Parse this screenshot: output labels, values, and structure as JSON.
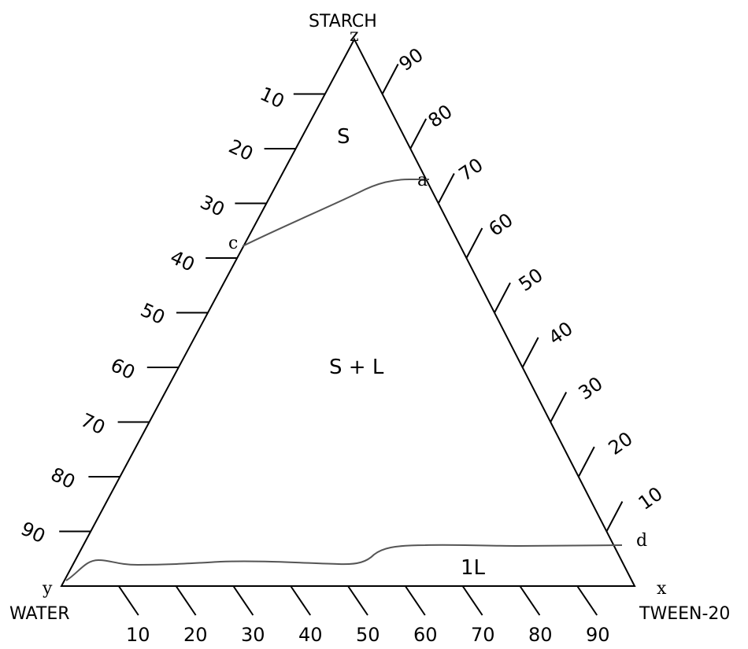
{
  "diagram": {
    "type": "ternary-phase-diagram",
    "components": {
      "top": "STARCH",
      "left": "WATER",
      "right": "TWEEN-20"
    },
    "vertex_letters": {
      "top": "z",
      "left": "y",
      "right": "x"
    },
    "axis_ticks": {
      "left": [
        "10",
        "20",
        "30",
        "40",
        "50",
        "60",
        "70",
        "80",
        "90"
      ],
      "right": [
        "90",
        "80",
        "70",
        "60",
        "50",
        "40",
        "30",
        "20",
        "10"
      ],
      "bottom": [
        "10",
        "20",
        "30",
        "40",
        "50",
        "60",
        "70",
        "80",
        "90"
      ]
    },
    "regions": [
      {
        "id": "solid",
        "label": "S"
      },
      {
        "id": "solid-liquid",
        "label": "S + L"
      },
      {
        "id": "one-liquid",
        "label": "1L"
      }
    ],
    "points": [
      {
        "id": "a",
        "label": "a"
      },
      {
        "id": "c",
        "label": "c"
      },
      {
        "id": "d",
        "label": "d"
      }
    ],
    "colors": {
      "line": "#000000",
      "boundary": "#555555",
      "background": "#ffffff"
    }
  }
}
